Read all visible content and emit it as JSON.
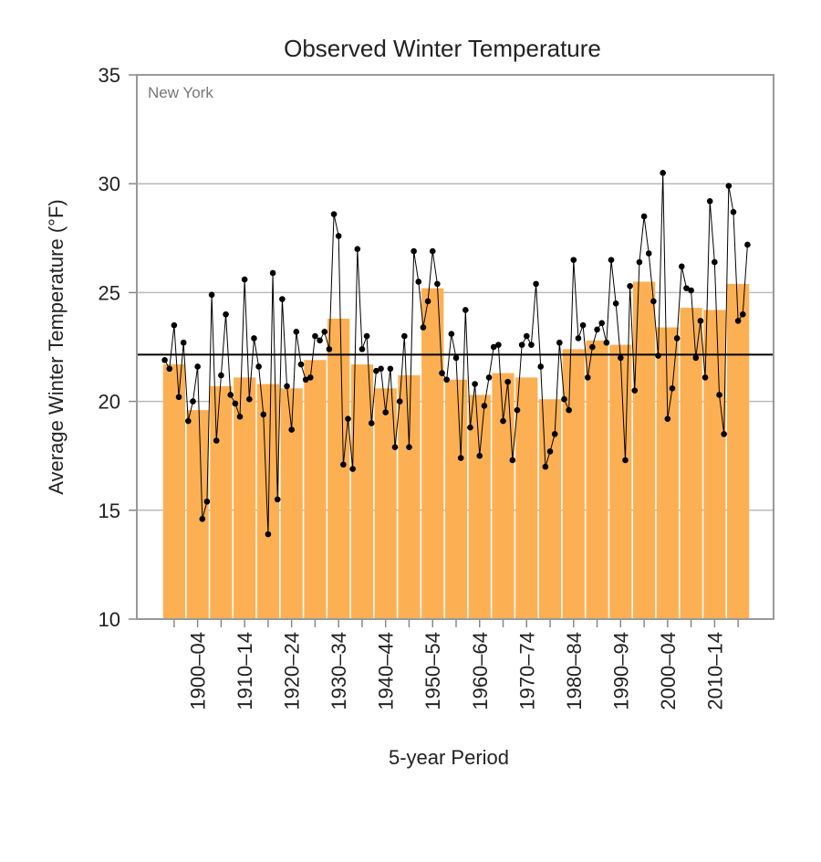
{
  "chart_data": {
    "type": "bar",
    "title": "Observed Winter Temperature",
    "annotation": "New York",
    "x_label": "5-year Period",
    "y_label": "Average Winter Temperature (°F)",
    "categories": [
      null,
      "1900–04",
      null,
      "1910–14",
      null,
      "1920–24",
      null,
      "1930–34",
      null,
      "1940–44",
      null,
      "1950–54",
      null,
      "1960–64",
      null,
      "1970–74",
      null,
      "1980–84",
      null,
      "1990–94",
      null,
      "2000–04",
      null,
      "2010–14",
      null
    ],
    "values": [
      21.7,
      19.6,
      20.7,
      21.1,
      20.8,
      20.6,
      21.9,
      23.8,
      21.7,
      20.6,
      21.2,
      25.2,
      21.0,
      20.3,
      21.3,
      21.1,
      20.1,
      22.4,
      22.8,
      22.6,
      25.5,
      23.4,
      24.3,
      24.2,
      25.4
    ],
    "color": "#fdb053",
    "annual_values": [
      21.9,
      21.5,
      23.5,
      20.2,
      22.7,
      19.1,
      20.0,
      21.6,
      14.6,
      15.4,
      24.9,
      18.2,
      21.2,
      24.0,
      20.3,
      19.9,
      19.3,
      25.6,
      20.1,
      22.9,
      21.6,
      19.4,
      13.9,
      25.9,
      15.5,
      24.7,
      20.7,
      18.7,
      23.2,
      21.7,
      21.0,
      21.1,
      23.0,
      22.8,
      23.2,
      22.4,
      28.6,
      27.6,
      17.1,
      19.2,
      16.9,
      27.0,
      22.4,
      23.0,
      19.0,
      21.4,
      21.5,
      19.5,
      21.5,
      17.9,
      20.0,
      23.0,
      17.9,
      26.9,
      25.5,
      23.4,
      24.6,
      26.9,
      25.4,
      21.3,
      21.0,
      23.1,
      22.0,
      17.4,
      24.2,
      18.8,
      20.8,
      17.5,
      19.8,
      21.1,
      22.5,
      22.6,
      19.1,
      20.9,
      17.3,
      19.6,
      22.6,
      23.0,
      22.6,
      25.4,
      21.6,
      17.0,
      17.7,
      18.5,
      22.7,
      20.1,
      19.6,
      26.5,
      22.9,
      23.5,
      21.1,
      22.5,
      23.3,
      23.6,
      22.7,
      26.5,
      24.5,
      22.0,
      17.3,
      25.3,
      20.5,
      26.4,
      28.5,
      26.8,
      24.6,
      22.1,
      30.5,
      19.2,
      20.6,
      22.9,
      26.2,
      25.2,
      25.1,
      22.0,
      23.7,
      21.1,
      29.2,
      26.4,
      20.3,
      18.5,
      29.9,
      28.7,
      23.7,
      24.0,
      27.2
    ],
    "line_color": "#000000",
    "reference_line": 22.15,
    "ylim": [
      10,
      35
    ],
    "yticks": [
      10,
      15,
      20,
      25,
      30,
      35
    ],
    "grid": true
  }
}
